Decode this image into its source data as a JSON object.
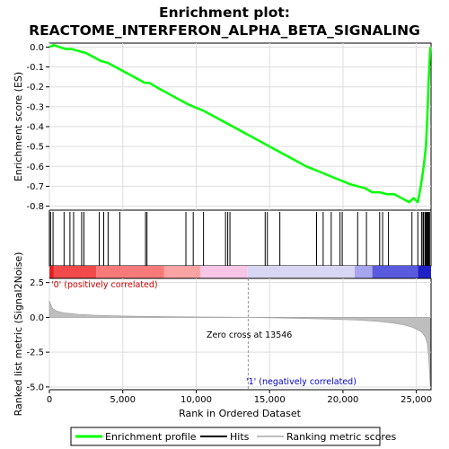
{
  "chart_data": {
    "type": "line",
    "title_lines": [
      "Enrichment plot:",
      "REACTOME_INTERFERON_ALPHA_BETA_SIGNALING"
    ],
    "xlabel": "Rank in Ordered Dataset",
    "xlim": [
      0,
      26000
    ],
    "x_ticks": [
      0,
      5000,
      10000,
      15000,
      20000,
      25000
    ],
    "es_panel": {
      "ylabel": "Enrichment score (ES)",
      "ylim": [
        -0.82,
        0.02
      ],
      "y_ticks": [
        0.0,
        -0.1,
        -0.2,
        -0.3,
        -0.4,
        -0.5,
        -0.6,
        -0.7,
        -0.8
      ],
      "y_tick_labels": [
        "0.0",
        "-0.1",
        "-0.2",
        "-0.3",
        "-0.4",
        "-0.5",
        "-0.6",
        "-0.7",
        "-0.8"
      ],
      "series": [
        {
          "name": "Enrichment profile",
          "color": "#00ff00",
          "x": [
            0,
            300,
            700,
            1100,
            1500,
            2000,
            2500,
            3000,
            3500,
            4000,
            4500,
            5000,
            5500,
            6000,
            6500,
            6800,
            7500,
            8500,
            9500,
            10500,
            11500,
            12500,
            13500,
            14500,
            15500,
            16500,
            17500,
            18500,
            19500,
            20500,
            21000,
            21500,
            22000,
            22500,
            23000,
            23500,
            24000,
            24500,
            24800,
            25100,
            25300,
            25500,
            25650,
            25750,
            25850,
            25950
          ],
          "y": [
            0.0,
            0.01,
            0.0,
            -0.01,
            -0.01,
            -0.02,
            -0.03,
            -0.05,
            -0.07,
            -0.08,
            -0.1,
            -0.12,
            -0.14,
            -0.16,
            -0.18,
            -0.18,
            -0.21,
            -0.25,
            -0.29,
            -0.32,
            -0.36,
            -0.4,
            -0.44,
            -0.48,
            -0.52,
            -0.56,
            -0.6,
            -0.63,
            -0.66,
            -0.69,
            -0.7,
            -0.71,
            -0.73,
            -0.73,
            -0.74,
            -0.74,
            -0.76,
            -0.78,
            -0.76,
            -0.78,
            -0.7,
            -0.6,
            -0.5,
            -0.35,
            -0.15,
            0.0
          ]
        }
      ]
    },
    "hits_panel": {
      "name": "Hits",
      "hit_ranks": [
        80,
        250,
        1000,
        1400,
        1650,
        2200,
        2350,
        3400,
        3700,
        4000,
        4800,
        6550,
        6650,
        9300,
        9800,
        10500,
        12000,
        12150,
        12300,
        14700,
        14850,
        15700,
        18200,
        18650,
        19200,
        19800,
        19950,
        21000,
        21600,
        22500,
        22700,
        23100,
        24700,
        25100,
        25350,
        25450,
        25500,
        25600,
        25650,
        25700,
        25750,
        25800,
        25850,
        25900
      ]
    },
    "metric_panel": {
      "name": "Ranking metric scores",
      "ylabel": "Ranked list metric (Signal2Noise)",
      "ylim": [
        -5.2,
        2.8
      ],
      "y_ticks": [
        2.5,
        0.0,
        -2.5,
        -5.0
      ],
      "y_tick_labels": [
        "2.5",
        "0.0",
        "-2.5",
        "-5.0"
      ],
      "x": [
        0,
        200,
        500,
        1000,
        2000,
        3000,
        5000,
        8000,
        10000,
        13546,
        16000,
        19000,
        21000,
        22500,
        23500,
        24200,
        24700,
        25100,
        25400,
        25600,
        25750,
        25850,
        25950
      ],
      "y": [
        1.2,
        0.65,
        0.45,
        0.32,
        0.22,
        0.16,
        0.1,
        0.05,
        0.03,
        0.0,
        -0.05,
        -0.12,
        -0.2,
        -0.3,
        -0.42,
        -0.55,
        -0.7,
        -0.9,
        -1.1,
        -1.4,
        -1.9,
        -3.0,
        -5.0
      ],
      "zero_cross_label": "Zero cross at 13546",
      "zero_cross_rank": 13546,
      "pos_label": "'0' (positively correlated)",
      "neg_label": "'1' (negatively correlated)"
    },
    "legend": {
      "placement": "bottom",
      "entries": [
        "Enrichment profile",
        "Hits",
        "Ranking metric scores"
      ]
    },
    "grid": true,
    "colors": {
      "profile": "#00ff00",
      "hits": "#000000",
      "metric_fill": "#bebebe",
      "axis_bg": "#ffffff",
      "pos_text": "#cc0000",
      "neg_text": "#0000cc"
    },
    "heat_bar": {
      "segments": [
        {
          "x0": 0,
          "x1": 300,
          "color": "#e02020"
        },
        {
          "x0": 300,
          "x1": 3200,
          "color": "#f24a4a"
        },
        {
          "x0": 3200,
          "x1": 7800,
          "color": "#f77a7a"
        },
        {
          "x0": 7800,
          "x1": 10300,
          "color": "#faa3a3"
        },
        {
          "x0": 10300,
          "x1": 13500,
          "color": "#f7c6e6"
        },
        {
          "x0": 13500,
          "x1": 20800,
          "color": "#d8d6f3"
        },
        {
          "x0": 20800,
          "x1": 22000,
          "color": "#a6a6ee"
        },
        {
          "x0": 22000,
          "x1": 25100,
          "color": "#5a5ade"
        },
        {
          "x0": 25100,
          "x1": 26000,
          "color": "#2020c8"
        }
      ]
    }
  }
}
